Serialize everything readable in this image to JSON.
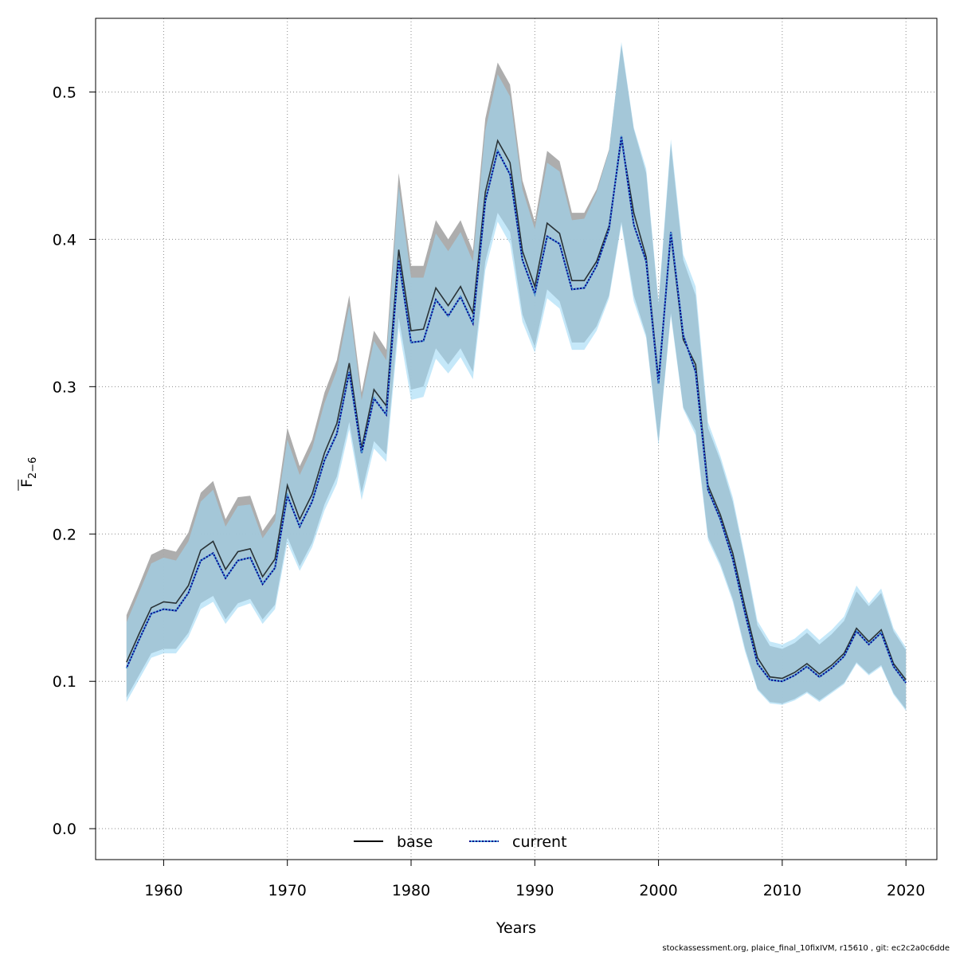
{
  "chart_data": {
    "type": "line",
    "xlabel": "Years",
    "ylabel": "F",
    "ylabel_subscript": "2−6",
    "xlim": [
      1954.5,
      2022.5
    ],
    "ylim": [
      -0.021,
      0.55
    ],
    "xticks": [
      1960,
      1970,
      1980,
      1990,
      2000,
      2010,
      2020
    ],
    "yticks": [
      0.0,
      0.1,
      0.2,
      0.3,
      0.4,
      0.5
    ],
    "ytick_labels": [
      "0.0",
      "0.1",
      "0.2",
      "0.3",
      "0.4",
      "0.5"
    ],
    "grid": true,
    "legend_position": "bottom-center",
    "x": [
      1957,
      1958,
      1959,
      1960,
      1961,
      1962,
      1963,
      1964,
      1965,
      1966,
      1967,
      1968,
      1969,
      1970,
      1971,
      1972,
      1973,
      1974,
      1975,
      1976,
      1977,
      1978,
      1979,
      1980,
      1981,
      1982,
      1983,
      1984,
      1985,
      1986,
      1987,
      1988,
      1989,
      1990,
      1991,
      1992,
      1993,
      1994,
      1995,
      1996,
      1997,
      1998,
      1999,
      2000,
      2001,
      2002,
      2003,
      2004,
      2005,
      2006,
      2007,
      2008,
      2009,
      2010,
      2011,
      2012,
      2013,
      2014,
      2015,
      2016,
      2017,
      2018,
      2019,
      2020
    ],
    "series": [
      {
        "name": "base",
        "color": "#000000",
        "band_color": "#a9a9a9",
        "values": [
          0.113,
          0.132,
          0.15,
          0.154,
          0.153,
          0.165,
          0.189,
          0.195,
          0.176,
          0.188,
          0.19,
          0.171,
          0.183,
          0.233,
          0.21,
          0.227,
          0.255,
          0.275,
          0.316,
          0.258,
          0.298,
          0.287,
          0.393,
          0.338,
          0.339,
          0.367,
          0.355,
          0.368,
          0.35,
          0.432,
          0.467,
          0.452,
          0.392,
          0.368,
          0.411,
          0.404,
          0.372,
          0.372,
          0.385,
          0.409,
          0.468,
          0.418,
          0.388,
          0.305,
          0.403,
          0.332,
          0.315,
          0.233,
          0.213,
          0.187,
          0.15,
          0.116,
          0.103,
          0.102,
          0.106,
          0.112,
          0.105,
          0.111,
          0.119,
          0.136,
          0.127,
          0.135,
          0.112,
          0.101
        ],
        "lower": [
          0.089,
          0.104,
          0.119,
          0.122,
          0.122,
          0.133,
          0.153,
          0.158,
          0.142,
          0.153,
          0.156,
          0.142,
          0.152,
          0.198,
          0.178,
          0.194,
          0.22,
          0.239,
          0.276,
          0.228,
          0.263,
          0.254,
          0.347,
          0.298,
          0.3,
          0.326,
          0.315,
          0.326,
          0.31,
          0.385,
          0.418,
          0.405,
          0.349,
          0.327,
          0.366,
          0.358,
          0.33,
          0.33,
          0.341,
          0.362,
          0.412,
          0.362,
          0.335,
          0.262,
          0.35,
          0.286,
          0.27,
          0.198,
          0.18,
          0.156,
          0.122,
          0.095,
          0.086,
          0.085,
          0.088,
          0.093,
          0.087,
          0.093,
          0.099,
          0.113,
          0.105,
          0.111,
          0.092,
          0.081
        ],
        "upper": [
          0.145,
          0.165,
          0.186,
          0.19,
          0.188,
          0.201,
          0.228,
          0.236,
          0.21,
          0.225,
          0.226,
          0.202,
          0.214,
          0.272,
          0.246,
          0.264,
          0.296,
          0.318,
          0.362,
          0.296,
          0.338,
          0.325,
          0.445,
          0.382,
          0.382,
          0.413,
          0.4,
          0.413,
          0.392,
          0.482,
          0.52,
          0.505,
          0.44,
          0.412,
          0.46,
          0.453,
          0.418,
          0.418,
          0.434,
          0.461,
          0.532,
          0.475,
          0.445,
          0.356,
          0.465,
          0.386,
          0.362,
          0.272,
          0.25,
          0.222,
          0.182,
          0.138,
          0.124,
          0.122,
          0.126,
          0.133,
          0.125,
          0.132,
          0.141,
          0.161,
          0.151,
          0.16,
          0.134,
          0.121
        ]
      },
      {
        "name": "current",
        "color": "#00008b",
        "dash_color": "#4aa0d8",
        "band_color": "#9fd8f5",
        "values": [
          0.109,
          0.128,
          0.146,
          0.149,
          0.148,
          0.16,
          0.182,
          0.187,
          0.17,
          0.182,
          0.184,
          0.166,
          0.177,
          0.226,
          0.205,
          0.222,
          0.25,
          0.268,
          0.31,
          0.255,
          0.292,
          0.281,
          0.386,
          0.33,
          0.331,
          0.359,
          0.348,
          0.361,
          0.343,
          0.426,
          0.46,
          0.444,
          0.386,
          0.363,
          0.402,
          0.397,
          0.366,
          0.367,
          0.382,
          0.407,
          0.47,
          0.41,
          0.385,
          0.302,
          0.405,
          0.335,
          0.31,
          0.23,
          0.21,
          0.183,
          0.146,
          0.112,
          0.101,
          0.1,
          0.104,
          0.11,
          0.103,
          0.109,
          0.117,
          0.134,
          0.125,
          0.133,
          0.11,
          0.099
        ],
        "lower": [
          0.086,
          0.101,
          0.116,
          0.119,
          0.119,
          0.13,
          0.149,
          0.154,
          0.139,
          0.15,
          0.153,
          0.139,
          0.149,
          0.194,
          0.175,
          0.191,
          0.216,
          0.234,
          0.271,
          0.223,
          0.258,
          0.249,
          0.34,
          0.291,
          0.293,
          0.319,
          0.309,
          0.32,
          0.305,
          0.379,
          0.412,
          0.397,
          0.344,
          0.323,
          0.36,
          0.353,
          0.325,
          0.325,
          0.338,
          0.36,
          0.41,
          0.358,
          0.333,
          0.26,
          0.348,
          0.285,
          0.267,
          0.196,
          0.178,
          0.154,
          0.12,
          0.094,
          0.085,
          0.084,
          0.087,
          0.092,
          0.086,
          0.092,
          0.098,
          0.112,
          0.104,
          0.11,
          0.091,
          0.08
        ],
        "upper": [
          0.14,
          0.16,
          0.18,
          0.184,
          0.182,
          0.195,
          0.222,
          0.23,
          0.205,
          0.219,
          0.22,
          0.197,
          0.209,
          0.264,
          0.24,
          0.258,
          0.289,
          0.311,
          0.355,
          0.291,
          0.331,
          0.318,
          0.436,
          0.374,
          0.374,
          0.404,
          0.392,
          0.405,
          0.385,
          0.474,
          0.512,
          0.497,
          0.434,
          0.407,
          0.452,
          0.446,
          0.413,
          0.414,
          0.432,
          0.46,
          0.534,
          0.476,
          0.448,
          0.358,
          0.468,
          0.39,
          0.368,
          0.276,
          0.253,
          0.225,
          0.184,
          0.141,
          0.127,
          0.125,
          0.129,
          0.136,
          0.128,
          0.135,
          0.144,
          0.165,
          0.153,
          0.163,
          0.136,
          0.123
        ]
      }
    ],
    "legend": {
      "items": [
        "base",
        "current"
      ]
    }
  },
  "footer": {
    "note": "stockassessment.org, plaice_final_10fixIVM, r15610 , git: ec2c2a0c6dde"
  }
}
